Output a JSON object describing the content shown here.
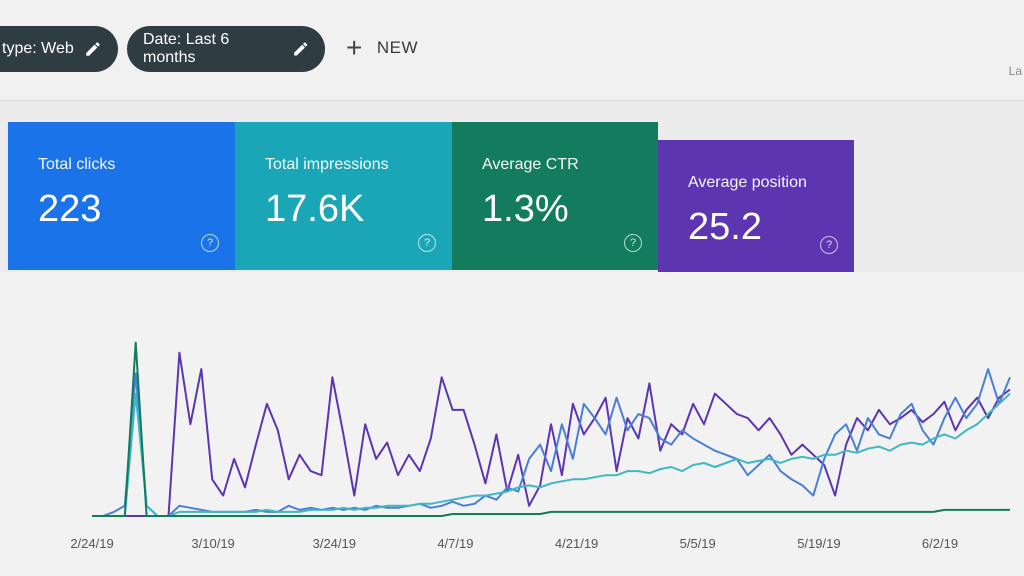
{
  "filters": {
    "type_chip": "type: Web",
    "date_chip": "Date: Last 6 months",
    "new_label": "NEW",
    "corner_text": "La"
  },
  "metrics": [
    {
      "label": "Total clicks",
      "value": "223",
      "color": "#1a73e8"
    },
    {
      "label": "Total impressions",
      "value": "17.6K",
      "color": "#1aa6b7"
    },
    {
      "label": "Average CTR",
      "value": "1.3%",
      "color": "#137b5e"
    },
    {
      "label": "Average position",
      "value": "25.2",
      "color": "#5e35b1"
    }
  ],
  "chart_data": {
    "type": "line",
    "x_tick_labels": [
      "2/24/19",
      "3/10/19",
      "3/24/19",
      "4/7/19",
      "4/21/19",
      "5/5/19",
      "5/19/19",
      "6/2/19"
    ],
    "ylim": [
      0,
      1
    ],
    "grid": false,
    "legend": "none",
    "series": [
      {
        "color": "#5e35b1",
        "values": [
          0.0,
          0.0,
          0.0,
          0.0,
          0.0,
          0.0,
          0.0,
          0.0,
          0.8,
          0.45,
          0.72,
          0.18,
          0.1,
          0.28,
          0.14,
          0.35,
          0.55,
          0.42,
          0.18,
          0.3,
          0.22,
          0.2,
          0.68,
          0.4,
          0.1,
          0.45,
          0.28,
          0.36,
          0.2,
          0.3,
          0.22,
          0.38,
          0.68,
          0.52,
          0.52,
          0.35,
          0.16,
          0.4,
          0.12,
          0.3,
          0.05,
          0.15,
          0.45,
          0.2,
          0.55,
          0.4,
          0.48,
          0.58,
          0.22,
          0.48,
          0.38,
          0.65,
          0.32,
          0.45,
          0.4,
          0.55,
          0.45,
          0.6,
          0.55,
          0.5,
          0.48,
          0.42,
          0.48,
          0.4,
          0.3,
          0.35,
          0.3,
          0.25,
          0.1,
          0.35,
          0.48,
          0.42,
          0.52,
          0.45,
          0.48,
          0.52,
          0.46,
          0.5,
          0.56,
          0.42,
          0.52,
          0.58,
          0.48,
          0.58,
          0.62
        ]
      },
      {
        "color": "#4a7fd6",
        "values": [
          0.0,
          0.0,
          0.02,
          0.05,
          0.7,
          0.05,
          0.0,
          0.0,
          0.05,
          0.04,
          0.03,
          0.02,
          0.02,
          0.02,
          0.02,
          0.03,
          0.02,
          0.02,
          0.05,
          0.03,
          0.04,
          0.03,
          0.04,
          0.03,
          0.04,
          0.03,
          0.05,
          0.04,
          0.04,
          0.05,
          0.06,
          0.04,
          0.05,
          0.07,
          0.05,
          0.06,
          0.1,
          0.08,
          0.14,
          0.12,
          0.28,
          0.35,
          0.22,
          0.45,
          0.28,
          0.55,
          0.48,
          0.4,
          0.58,
          0.42,
          0.5,
          0.48,
          0.38,
          0.35,
          0.42,
          0.38,
          0.35,
          0.32,
          0.3,
          0.28,
          0.2,
          0.25,
          0.3,
          0.22,
          0.18,
          0.15,
          0.1,
          0.28,
          0.4,
          0.45,
          0.32,
          0.48,
          0.4,
          0.38,
          0.5,
          0.55,
          0.42,
          0.35,
          0.48,
          0.58,
          0.48,
          0.55,
          0.72,
          0.55,
          0.68
        ]
      },
      {
        "color": "#40b7c2",
        "values": [
          0.0,
          0.0,
          0.0,
          0.0,
          0.6,
          0.05,
          0.0,
          0.0,
          0.02,
          0.02,
          0.02,
          0.02,
          0.02,
          0.02,
          0.02,
          0.02,
          0.03,
          0.02,
          0.02,
          0.02,
          0.03,
          0.03,
          0.03,
          0.04,
          0.03,
          0.04,
          0.04,
          0.05,
          0.05,
          0.05,
          0.06,
          0.06,
          0.07,
          0.08,
          0.09,
          0.1,
          0.1,
          0.11,
          0.12,
          0.14,
          0.15,
          0.14,
          0.16,
          0.17,
          0.18,
          0.18,
          0.19,
          0.2,
          0.2,
          0.22,
          0.22,
          0.21,
          0.23,
          0.24,
          0.22,
          0.25,
          0.26,
          0.24,
          0.26,
          0.28,
          0.26,
          0.27,
          0.28,
          0.26,
          0.28,
          0.29,
          0.28,
          0.3,
          0.3,
          0.32,
          0.31,
          0.33,
          0.34,
          0.32,
          0.35,
          0.36,
          0.35,
          0.38,
          0.4,
          0.38,
          0.42,
          0.45,
          0.5,
          0.55,
          0.6
        ]
      },
      {
        "color": "#137b5e",
        "values": [
          0.0,
          0.0,
          0.0,
          0.0,
          0.85,
          0.0,
          0.0,
          0.0,
          0.0,
          0.0,
          0.0,
          0.0,
          0.0,
          0.0,
          0.0,
          0.0,
          0.0,
          0.0,
          0.0,
          0.0,
          0.0,
          0.0,
          0.0,
          0.0,
          0.0,
          0.0,
          0.0,
          0.0,
          0.0,
          0.0,
          0.0,
          0.0,
          0.0,
          0.01,
          0.01,
          0.01,
          0.01,
          0.01,
          0.01,
          0.01,
          0.01,
          0.01,
          0.02,
          0.02,
          0.02,
          0.02,
          0.02,
          0.02,
          0.02,
          0.02,
          0.02,
          0.02,
          0.02,
          0.02,
          0.02,
          0.02,
          0.02,
          0.02,
          0.02,
          0.02,
          0.02,
          0.02,
          0.02,
          0.02,
          0.02,
          0.02,
          0.02,
          0.02,
          0.02,
          0.02,
          0.02,
          0.02,
          0.02,
          0.02,
          0.02,
          0.02,
          0.02,
          0.02,
          0.03,
          0.03,
          0.03,
          0.03,
          0.03,
          0.03,
          0.03
        ]
      }
    ]
  }
}
